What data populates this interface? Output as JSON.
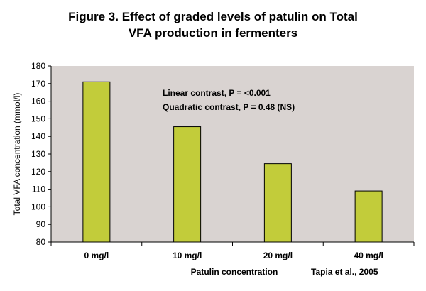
{
  "chart_data": {
    "type": "bar",
    "title": [
      "Figure 3. Effect of graded levels of patulin on Total",
      "VFA production in fermenters"
    ],
    "xlabel": "Patulin concentration",
    "ylabel": "Total VFA concentration (mmol/l)",
    "categories": [
      "0 mg/l",
      "10 mg/l",
      "20 mg/l",
      "40 mg/l"
    ],
    "values": [
      171,
      145.5,
      124.5,
      109
    ],
    "ylim": [
      80,
      180
    ],
    "yticks": [
      80,
      90,
      100,
      110,
      120,
      130,
      140,
      150,
      160,
      170,
      180
    ],
    "annotations": [
      "Linear contrast, P = <0.001",
      "Quadratic contrast, P = 0.48 (NS)"
    ],
    "source": "Tapia et al., 2005",
    "grid": false,
    "colors": {
      "bar": "#c2cc3a",
      "bar_stroke": "#000000",
      "plot_bg": "#d9d3d1"
    }
  }
}
